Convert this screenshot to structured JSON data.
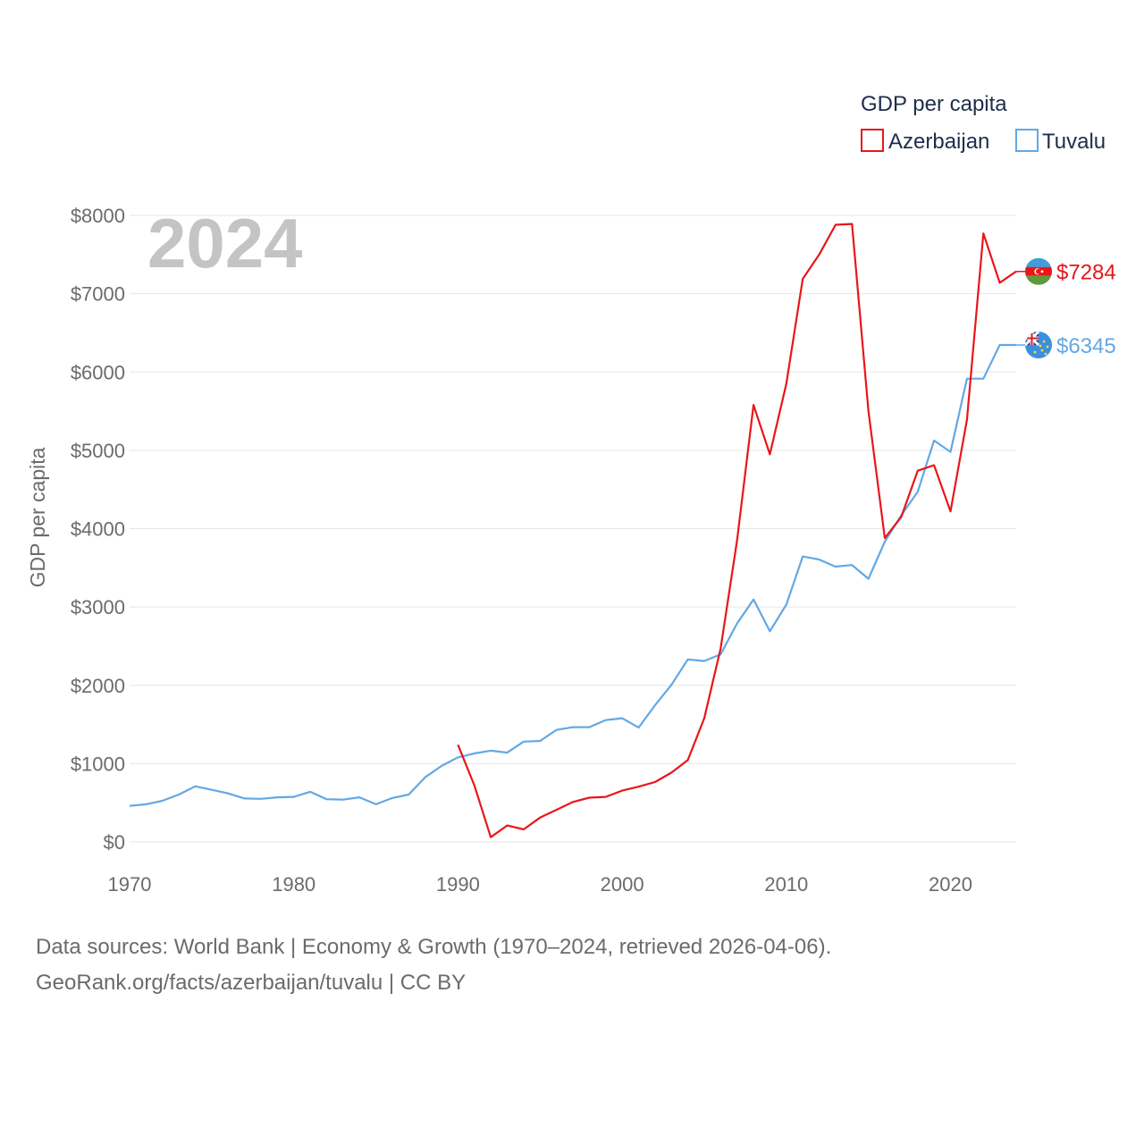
{
  "chart_data": {
    "type": "line",
    "title": "",
    "year_label": "2024",
    "xlabel": "",
    "ylabel": "GDP per capita",
    "xlim": [
      1970,
      2024
    ],
    "ylim": [
      0,
      8000
    ],
    "x_ticks": [
      1970,
      1980,
      1990,
      2000,
      2010,
      2020
    ],
    "y_ticks": [
      0,
      1000,
      2000,
      3000,
      4000,
      5000,
      6000,
      7000,
      8000
    ],
    "y_tick_labels": [
      "$0",
      "$1000",
      "$2000",
      "$3000",
      "$4000",
      "$5000",
      "$6000",
      "$7000",
      "$8000"
    ],
    "legend_title": "GDP per capita",
    "legend_position": "top-right",
    "series": [
      {
        "name": "Azerbaijan",
        "color": "#e8161b",
        "flag": "azerbaijan-flag-icon",
        "end_label": "$7284",
        "points": [
          [
            1990,
            1240
          ],
          [
            1991,
            720
          ],
          [
            1992,
            60
          ],
          [
            1993,
            210
          ],
          [
            1994,
            160
          ],
          [
            1995,
            310
          ],
          [
            1996,
            410
          ],
          [
            1997,
            510
          ],
          [
            1998,
            565
          ],
          [
            1999,
            575
          ],
          [
            2000,
            655
          ],
          [
            2001,
            705
          ],
          [
            2002,
            765
          ],
          [
            2003,
            885
          ],
          [
            2004,
            1045
          ],
          [
            2005,
            1580
          ],
          [
            2006,
            2470
          ],
          [
            2007,
            3850
          ],
          [
            2008,
            5580
          ],
          [
            2009,
            4950
          ],
          [
            2010,
            5850
          ],
          [
            2011,
            7190
          ],
          [
            2012,
            7500
          ],
          [
            2013,
            7880
          ],
          [
            2014,
            7890
          ],
          [
            2015,
            5500
          ],
          [
            2016,
            3880
          ],
          [
            2017,
            4150
          ],
          [
            2018,
            4740
          ],
          [
            2019,
            4810
          ],
          [
            2020,
            4220
          ],
          [
            2021,
            5390
          ],
          [
            2022,
            7770
          ],
          [
            2023,
            7140
          ],
          [
            2024,
            7284
          ]
        ]
      },
      {
        "name": "Tuvalu",
        "color": "#62a8e5",
        "flag": "tuvalu-flag-icon",
        "end_label": "$6345",
        "points": [
          [
            1970,
            460
          ],
          [
            1971,
            480
          ],
          [
            1972,
            525
          ],
          [
            1973,
            605
          ],
          [
            1974,
            710
          ],
          [
            1975,
            665
          ],
          [
            1976,
            620
          ],
          [
            1977,
            555
          ],
          [
            1978,
            550
          ],
          [
            1979,
            570
          ],
          [
            1980,
            575
          ],
          [
            1981,
            640
          ],
          [
            1982,
            545
          ],
          [
            1983,
            540
          ],
          [
            1984,
            570
          ],
          [
            1985,
            480
          ],
          [
            1986,
            560
          ],
          [
            1987,
            605
          ],
          [
            1988,
            825
          ],
          [
            1989,
            970
          ],
          [
            1990,
            1080
          ],
          [
            1991,
            1130
          ],
          [
            1992,
            1165
          ],
          [
            1993,
            1140
          ],
          [
            1994,
            1280
          ],
          [
            1995,
            1290
          ],
          [
            1996,
            1430
          ],
          [
            1997,
            1465
          ],
          [
            1998,
            1465
          ],
          [
            1999,
            1555
          ],
          [
            2000,
            1580
          ],
          [
            2001,
            1460
          ],
          [
            2002,
            1745
          ],
          [
            2003,
            2005
          ],
          [
            2004,
            2330
          ],
          [
            2005,
            2310
          ],
          [
            2006,
            2395
          ],
          [
            2007,
            2790
          ],
          [
            2008,
            3095
          ],
          [
            2009,
            2690
          ],
          [
            2010,
            3030
          ],
          [
            2011,
            3645
          ],
          [
            2012,
            3605
          ],
          [
            2013,
            3515
          ],
          [
            2014,
            3535
          ],
          [
            2015,
            3360
          ],
          [
            2016,
            3835
          ],
          [
            2017,
            4170
          ],
          [
            2018,
            4470
          ],
          [
            2019,
            5125
          ],
          [
            2020,
            4980
          ],
          [
            2021,
            5915
          ],
          [
            2022,
            5915
          ],
          [
            2023,
            6345
          ],
          [
            2024,
            6345
          ]
        ]
      }
    ]
  },
  "footer": {
    "line1": "Data sources: World Bank | Economy & Growth (1970–2024, retrieved 2026-04-06).",
    "line2": "GeoRank.org/facts/azerbaijan/tuvalu | CC BY"
  }
}
